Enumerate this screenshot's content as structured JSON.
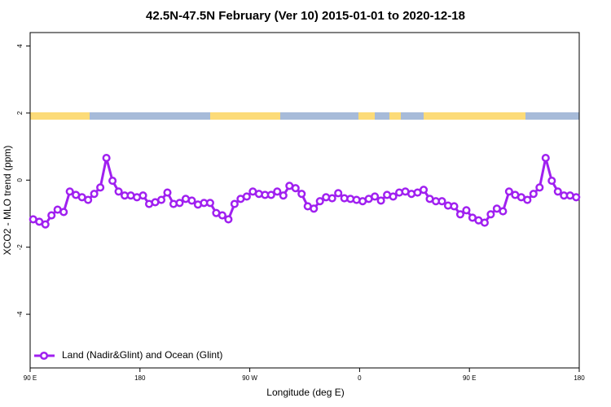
{
  "chart_data": {
    "type": "line",
    "title": "42.5N-47.5N February (Ver 10)   2015-01-01 to 2020-12-18",
    "x_label": "Longitude (deg E)",
    "y_label": "XCO2 - MLO trend (ppm)",
    "x": [
      92.5,
      97.5,
      102.5,
      107.5,
      112.5,
      117.5,
      122.5,
      127.5,
      132.5,
      137.5,
      142.5,
      147.5,
      152.5,
      157.5,
      162.5,
      167.5,
      172.5,
      177.5,
      182.5,
      187.5,
      192.5,
      197.5,
      202.5,
      207.5,
      212.5,
      217.5,
      222.5,
      227.5,
      232.5,
      237.5,
      242.5,
      247.5,
      252.5,
      257.5,
      262.5,
      267.5,
      272.5,
      277.5,
      282.5,
      287.5,
      292.5,
      297.5,
      302.5,
      307.5,
      312.5,
      317.5,
      322.5,
      327.5,
      332.5,
      337.5,
      342.5,
      347.5,
      352.5,
      357.5,
      362.5,
      367.5,
      372.5,
      377.5,
      382.5,
      387.5,
      392.5,
      397.5,
      402.5,
      407.5,
      412.5,
      417.5,
      422.5,
      427.5,
      432.5,
      437.5,
      442.5,
      447.5,
      452.5,
      457.5,
      462.5,
      467.5,
      472.5,
      477.5,
      482.5,
      487.5,
      492.5,
      497.5,
      502.5,
      507.5,
      512.5,
      517.5,
      522.5,
      527.5,
      532.5,
      537.5
    ],
    "series": [
      {
        "name": "Land (Nadir&Glint) and Ocean (Glint)",
        "color": "#a020f0",
        "values": [
          -1.17,
          -1.24,
          -1.32,
          -1.05,
          -0.88,
          -0.95,
          -0.34,
          -0.44,
          -0.51,
          -0.59,
          -0.41,
          -0.22,
          0.66,
          -0.02,
          -0.34,
          -0.46,
          -0.46,
          -0.51,
          -0.46,
          -0.71,
          -0.66,
          -0.59,
          -0.37,
          -0.71,
          -0.68,
          -0.56,
          -0.61,
          -0.73,
          -0.68,
          -0.68,
          -0.98,
          -1.05,
          -1.17,
          -0.71,
          -0.56,
          -0.49,
          -0.34,
          -0.41,
          -0.44,
          -0.44,
          -0.34,
          -0.46,
          -0.17,
          -0.24,
          -0.41,
          -0.78,
          -0.85,
          -0.63,
          -0.51,
          -0.54,
          -0.39,
          -0.54,
          -0.56,
          -0.59,
          -0.63,
          -0.56,
          -0.49,
          -0.61,
          -0.44,
          -0.49,
          -0.37,
          -0.34,
          -0.41,
          -0.37,
          -0.29,
          -0.56,
          -0.63,
          -0.63,
          -0.76,
          -0.78,
          -1.02,
          -0.9,
          -1.12,
          -1.2,
          -1.27,
          -1.02,
          -0.85,
          -0.93,
          -0.34,
          -0.44,
          -0.51,
          -0.59,
          -0.41,
          -0.22,
          0.66,
          -0.02,
          -0.34,
          -0.46,
          -0.46,
          -0.51
        ]
      }
    ],
    "xlim": [
      90,
      540
    ],
    "xticks": [
      {
        "value": 90,
        "label": "90 E"
      },
      180,
      {
        "value": 270,
        "label": "90 W"
      },
      {
        "value": 360,
        "label": "0"
      },
      {
        "value": 450,
        "label": "90 E"
      },
      {
        "value": 540,
        "label": "180"
      }
    ],
    "ylim": [
      -5.6,
      4.4
    ],
    "yticks": [
      -4,
      -2,
      0,
      2,
      4
    ],
    "legend_position": "bottom-left"
  }
}
